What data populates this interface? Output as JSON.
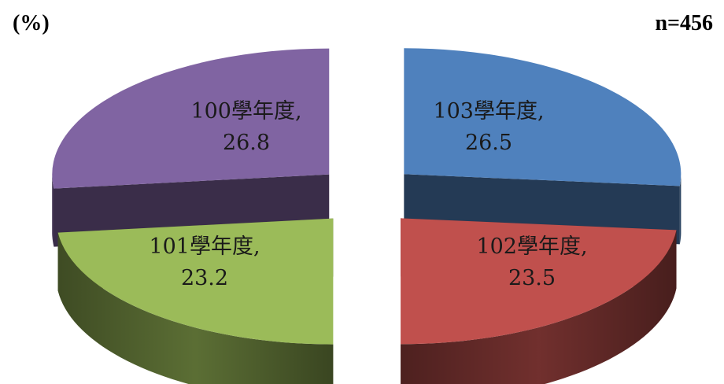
{
  "header": {
    "unit": "(%)",
    "sample_size": "n=456"
  },
  "chart_data": {
    "type": "pie",
    "variant": "3d-exploded",
    "title": "",
    "categories": [
      "103學年度",
      "102學年度",
      "101學年度",
      "100學年度"
    ],
    "values": [
      26.5,
      23.5,
      23.2,
      26.8
    ],
    "labels": [
      "103學年度,",
      "102學年度,",
      "101學年度,",
      "100學年度,"
    ],
    "value_labels": [
      "26.5",
      "23.5",
      "23.2",
      "26.8"
    ],
    "colors": [
      "#4f81bd",
      "#c0504d",
      "#9bbb59",
      "#8064a2"
    ],
    "legend": "none",
    "grid": false
  }
}
